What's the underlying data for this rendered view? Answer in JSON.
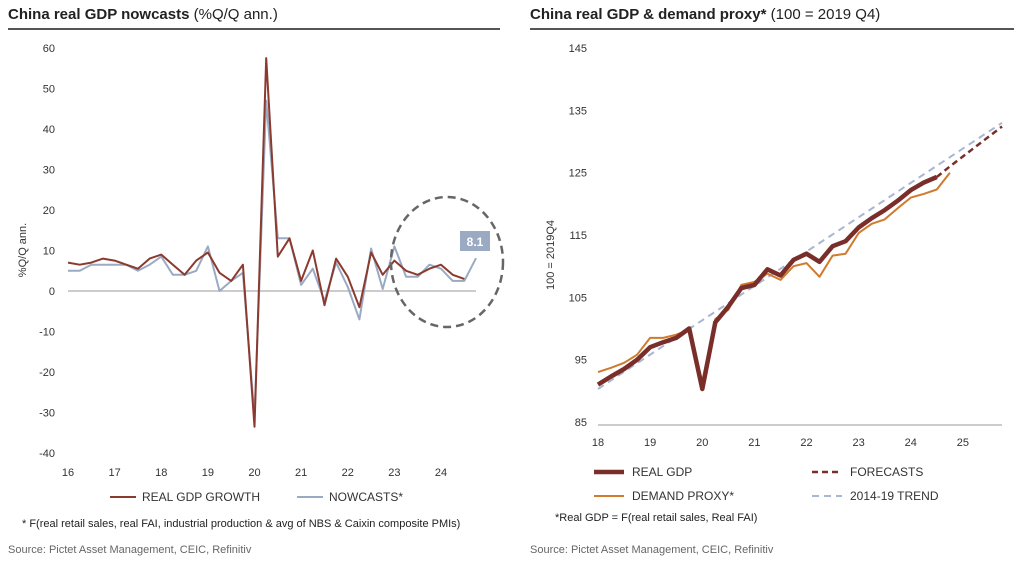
{
  "left": {
    "title": "China real GDP nowcasts",
    "subtitle": "(%Q/Q ann.)",
    "footnote": "* F(real retail sales, real FAI, industrial production & avg of NBS & Caixin composite PMIs)",
    "source": "Source: Pictet Asset Management, CEIC, Refinitiv"
  },
  "right": {
    "title": "China real GDP & demand proxy*",
    "subtitle": "(100 = 2019 Q4)",
    "footnote": "*Real GDP = F(real retail sales, Real FAI)",
    "source": "Source: Pictet Asset Management, CEIC, Refinitiv"
  },
  "colors": {
    "gdp_dark": "#7a2e2a",
    "gdp_growth": "#8b3a2f",
    "nowcast": "#9aaac3",
    "demand": "#d07a2e",
    "trend": "#a9b6d3",
    "circle": "#666666",
    "label_box": "#9aaac3"
  },
  "chart_data": [
    {
      "type": "line",
      "title": "China real GDP nowcasts",
      "subtitle": "(%Q/Q ann.)",
      "xlabel": "",
      "ylabel": "%Q/Q ann.",
      "xlim": [
        16,
        24.75
      ],
      "ylim": [
        -40,
        60
      ],
      "xticks": [
        "16",
        "17",
        "18",
        "19",
        "20",
        "21",
        "22",
        "23",
        "24"
      ],
      "yticks": [
        "60",
        "50",
        "40",
        "30",
        "20",
        "10",
        "0",
        "-10",
        "-20",
        "-30",
        "-40"
      ],
      "grid": false,
      "legend_position": "bottom",
      "annotation": "8.1",
      "series": [
        {
          "name": "REAL GDP GROWTH",
          "points": [
            [
              16,
              7
            ],
            [
              16.25,
              6.5
            ],
            [
              16.5,
              7
            ],
            [
              16.75,
              8
            ],
            [
              17,
              7.5
            ],
            [
              17.25,
              6.5
            ],
            [
              17.5,
              5.5
            ],
            [
              17.75,
              8
            ],
            [
              18,
              9
            ],
            [
              18.25,
              6.5
            ],
            [
              18.5,
              4
            ],
            [
              18.75,
              7.5
            ],
            [
              19,
              9.5
            ],
            [
              19.25,
              4.5
            ],
            [
              19.5,
              2.5
            ],
            [
              19.75,
              6.5
            ],
            [
              20,
              -33.5
            ],
            [
              20.25,
              57.5
            ],
            [
              20.5,
              8.5
            ],
            [
              20.75,
              13
            ],
            [
              21,
              2.5
            ],
            [
              21.25,
              10
            ],
            [
              21.5,
              -3.5
            ],
            [
              21.75,
              8
            ],
            [
              22,
              3.5
            ],
            [
              22.25,
              -4
            ],
            [
              22.5,
              9.5
            ],
            [
              22.75,
              4
            ],
            [
              23,
              7.5
            ],
            [
              23.25,
              5
            ],
            [
              23.5,
              4
            ],
            [
              23.75,
              5.5
            ],
            [
              24,
              6.5
            ],
            [
              24.25,
              4
            ],
            [
              24.5,
              3
            ]
          ]
        },
        {
          "name": "NOWCASTS*",
          "points": [
            [
              16,
              5
            ],
            [
              16.25,
              5
            ],
            [
              16.5,
              6.5
            ],
            [
              16.75,
              6.5
            ],
            [
              17,
              6.5
            ],
            [
              17.25,
              6.5
            ],
            [
              17.5,
              5
            ],
            [
              17.75,
              6.5
            ],
            [
              18,
              8.5
            ],
            [
              18.25,
              4
            ],
            [
              18.5,
              4
            ],
            [
              18.75,
              5
            ],
            [
              19,
              11
            ],
            [
              19.25,
              0
            ],
            [
              19.5,
              2.5
            ],
            [
              19.75,
              4.5
            ],
            [
              20,
              -31
            ],
            [
              20.25,
              47
            ],
            [
              20.5,
              13
            ],
            [
              20.75,
              13
            ],
            [
              21,
              1.5
            ],
            [
              21.25,
              5.5
            ],
            [
              21.5,
              -2.5
            ],
            [
              21.75,
              7
            ],
            [
              22,
              1
            ],
            [
              22.25,
              -7
            ],
            [
              22.5,
              10.5
            ],
            [
              22.75,
              0.5
            ],
            [
              23,
              11
            ],
            [
              23.25,
              3.5
            ],
            [
              23.5,
              3.5
            ],
            [
              23.75,
              6.5
            ],
            [
              24,
              5.5
            ],
            [
              24.25,
              2.5
            ],
            [
              24.5,
              2.5
            ],
            [
              24.75,
              8.1
            ]
          ]
        }
      ]
    },
    {
      "type": "line",
      "title": "China real GDP & demand proxy*",
      "subtitle": "(100 = 2019 Q4)",
      "xlabel": "",
      "ylabel": "100 = 2019Q4",
      "xlim": [
        18,
        25.75
      ],
      "ylim": [
        85,
        145
      ],
      "xticks": [
        "18",
        "19",
        "20",
        "21",
        "22",
        "23",
        "24",
        "25"
      ],
      "yticks": [
        "145",
        "135",
        "125",
        "115",
        "105",
        "95",
        "85"
      ],
      "grid": false,
      "legend_position": "bottom",
      "series": [
        {
          "name": "REAL GDP",
          "points": [
            [
              18,
              91
            ],
            [
              18.25,
              92.3
            ],
            [
              18.5,
              93.5
            ],
            [
              18.75,
              95
            ],
            [
              19,
              97
            ],
            [
              19.25,
              97.8
            ],
            [
              19.5,
              98.5
            ],
            [
              19.75,
              100
            ],
            [
              20,
              90.3
            ],
            [
              20.25,
              101
            ],
            [
              20.5,
              103.5
            ],
            [
              20.75,
              106.5
            ],
            [
              21,
              107
            ],
            [
              21.25,
              109.5
            ],
            [
              21.5,
              108.5
            ],
            [
              21.75,
              111
            ],
            [
              22,
              112
            ],
            [
              22.25,
              110.7
            ],
            [
              22.5,
              113.2
            ],
            [
              22.75,
              114
            ],
            [
              23,
              116.2
            ],
            [
              23.25,
              117.7
            ],
            [
              23.5,
              119
            ],
            [
              23.75,
              120.5
            ],
            [
              24,
              122.2
            ],
            [
              24.25,
              123.4
            ],
            [
              24.5,
              124.3
            ]
          ]
        },
        {
          "name": "FORECASTS",
          "points": [
            [
              24.5,
              124.3
            ],
            [
              24.75,
              126
            ],
            [
              25,
              127.6
            ],
            [
              25.25,
              129.2
            ],
            [
              25.5,
              130.8
            ],
            [
              25.75,
              132.4
            ]
          ]
        },
        {
          "name": "DEMAND PROXY*",
          "points": [
            [
              18,
              93
            ],
            [
              18.25,
              93.7
            ],
            [
              18.5,
              94.5
            ],
            [
              18.75,
              95.8
            ],
            [
              19,
              98.5
            ],
            [
              19.25,
              98.5
            ],
            [
              19.5,
              99
            ],
            [
              19.75,
              99.8
            ],
            [
              20,
              91.5
            ],
            [
              20.25,
              101.5
            ],
            [
              20.5,
              103
            ],
            [
              20.75,
              107
            ],
            [
              21,
              107.5
            ],
            [
              21.25,
              108.8
            ],
            [
              21.5,
              107.8
            ],
            [
              21.75,
              110
            ],
            [
              22,
              110.5
            ],
            [
              22.25,
              108.3
            ],
            [
              22.5,
              111.7
            ],
            [
              22.75,
              112
            ],
            [
              23,
              115.3
            ],
            [
              23.25,
              116.8
            ],
            [
              23.5,
              117.5
            ],
            [
              23.75,
              119.3
            ],
            [
              24,
              121
            ],
            [
              24.25,
              121.6
            ],
            [
              24.5,
              122.3
            ],
            [
              24.75,
              125
            ]
          ]
        },
        {
          "name": "2014-19 TREND",
          "points": [
            [
              18,
              90.3
            ],
            [
              25.75,
              133
            ]
          ]
        }
      ]
    }
  ]
}
